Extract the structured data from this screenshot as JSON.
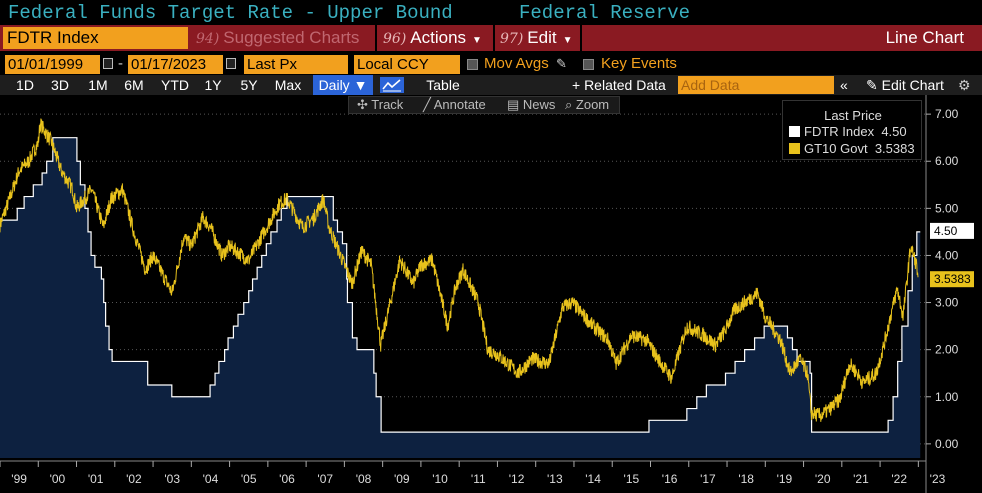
{
  "header": {
    "title": "Federal Funds Target Rate - Upper Bound",
    "source": "Federal Reserve"
  },
  "commandbar": {
    "ticker": "FDTR Index",
    "suggested": {
      "num": "94)",
      "label": "Suggested Charts"
    },
    "actions": {
      "num": "96)",
      "label": "Actions"
    },
    "edit": {
      "num": "97)",
      "label": "Edit"
    },
    "view_label": "Line Chart"
  },
  "daterow": {
    "start_date": "01/01/1999",
    "end_date": "01/17/2023",
    "price_field": "Last Px",
    "currency": "Local CCY",
    "mov_avgs": "Mov Avgs",
    "key_events": "Key Events"
  },
  "toolbar": {
    "periods": [
      "1D",
      "3D",
      "1M",
      "6M",
      "YTD",
      "1Y",
      "5Y",
      "Max"
    ],
    "frequency": "Daily",
    "table_label": "Table",
    "related_label": "+ Related Data",
    "add_data_placeholder": "Add Data",
    "collapse": "«",
    "edit_chart": "Edit Chart"
  },
  "annotation_bar": {
    "track": "Track",
    "annotate": "Annotate",
    "news": "News",
    "zoom": "Zoom"
  },
  "legend": {
    "header": "Last Price",
    "items": [
      {
        "name": "FDTR Index",
        "value": "4.50",
        "color": "#ffffff"
      },
      {
        "name": "GT10 Govt",
        "value": "3.5383",
        "color": "#e8c21c"
      }
    ]
  },
  "chart_data": {
    "type": "line",
    "ylim": [
      -0.3,
      7.3
    ],
    "yticks": [
      "0.00",
      "1.00",
      "2.00",
      "3.00",
      "4.00",
      "5.00",
      "6.00",
      "7.00"
    ],
    "xticks": [
      "'99",
      "'00",
      "'01",
      "'02",
      "'03",
      "'04",
      "'05",
      "'06",
      "'07",
      "'08",
      "'09",
      "'10",
      "'11",
      "'12",
      "'13",
      "'14",
      "'15",
      "'16",
      "'17",
      "'18",
      "'19",
      "'20",
      "'21",
      "'22",
      "'23"
    ],
    "last_labels": [
      {
        "series": "FDTR Index",
        "text": "4.50",
        "value": 4.5
      },
      {
        "series": "GT10 Govt",
        "text": "3.5383",
        "value": 3.5383
      }
    ],
    "series": [
      {
        "name": "FDTR Index",
        "style": "step-area",
        "points": [
          [
            1999.0,
            4.75
          ],
          [
            1999.45,
            5.0
          ],
          [
            1999.63,
            5.25
          ],
          [
            1999.87,
            5.5
          ],
          [
            2000.1,
            5.75
          ],
          [
            2000.22,
            6.0
          ],
          [
            2000.38,
            6.5
          ],
          [
            2001.01,
            6.0
          ],
          [
            2001.1,
            5.5
          ],
          [
            2001.22,
            5.0
          ],
          [
            2001.3,
            4.5
          ],
          [
            2001.38,
            4.0
          ],
          [
            2001.48,
            3.75
          ],
          [
            2001.65,
            3.5
          ],
          [
            2001.71,
            3.0
          ],
          [
            2001.76,
            2.5
          ],
          [
            2001.85,
            2.0
          ],
          [
            2001.93,
            1.75
          ],
          [
            2002.86,
            1.25
          ],
          [
            2003.49,
            1.0
          ],
          [
            2004.49,
            1.25
          ],
          [
            2004.62,
            1.5
          ],
          [
            2004.72,
            1.75
          ],
          [
            2004.87,
            2.0
          ],
          [
            2004.96,
            2.25
          ],
          [
            2005.1,
            2.5
          ],
          [
            2005.22,
            2.75
          ],
          [
            2005.37,
            3.0
          ],
          [
            2005.5,
            3.25
          ],
          [
            2005.6,
            3.5
          ],
          [
            2005.72,
            3.75
          ],
          [
            2005.84,
            4.0
          ],
          [
            2005.96,
            4.25
          ],
          [
            2006.08,
            4.5
          ],
          [
            2006.24,
            4.75
          ],
          [
            2006.35,
            5.0
          ],
          [
            2006.5,
            5.25
          ],
          [
            2007.71,
            4.75
          ],
          [
            2007.82,
            4.5
          ],
          [
            2007.95,
            4.25
          ],
          [
            2008.06,
            3.5
          ],
          [
            2008.08,
            3.0
          ],
          [
            2008.21,
            2.25
          ],
          [
            2008.33,
            2.0
          ],
          [
            2008.77,
            1.5
          ],
          [
            2008.83,
            1.0
          ],
          [
            2008.96,
            0.25
          ],
          [
            2015.96,
            0.5
          ],
          [
            2016.95,
            0.75
          ],
          [
            2017.21,
            1.0
          ],
          [
            2017.46,
            1.25
          ],
          [
            2017.96,
            1.5
          ],
          [
            2018.21,
            1.75
          ],
          [
            2018.46,
            2.0
          ],
          [
            2018.72,
            2.25
          ],
          [
            2018.97,
            2.5
          ],
          [
            2019.58,
            2.25
          ],
          [
            2019.71,
            2.0
          ],
          [
            2019.83,
            1.75
          ],
          [
            2020.17,
            1.5
          ],
          [
            2020.21,
            0.25
          ],
          [
            2022.21,
            0.5
          ],
          [
            2022.34,
            1.0
          ],
          [
            2022.46,
            1.75
          ],
          [
            2022.57,
            2.5
          ],
          [
            2022.73,
            3.25
          ],
          [
            2022.84,
            4.0
          ],
          [
            2022.96,
            4.5
          ],
          [
            2023.05,
            4.5
          ]
        ]
      },
      {
        "name": "GT10 Govt",
        "style": "line",
        "points": [
          [
            1999.0,
            4.65
          ],
          [
            1999.25,
            5.2
          ],
          [
            1999.5,
            5.8
          ],
          [
            1999.75,
            6.0
          ],
          [
            2000.0,
            6.4
          ],
          [
            2000.05,
            6.8
          ],
          [
            2000.35,
            6.4
          ],
          [
            2000.6,
            5.8
          ],
          [
            2000.9,
            5.4
          ],
          [
            2001.0,
            5.0
          ],
          [
            2001.4,
            5.4
          ],
          [
            2001.7,
            4.6
          ],
          [
            2001.9,
            5.2
          ],
          [
            2002.2,
            5.4
          ],
          [
            2002.5,
            4.5
          ],
          [
            2002.8,
            3.7
          ],
          [
            2003.0,
            4.0
          ],
          [
            2003.5,
            3.2
          ],
          [
            2003.8,
            4.4
          ],
          [
            2004.0,
            4.2
          ],
          [
            2004.3,
            4.8
          ],
          [
            2004.5,
            4.6
          ],
          [
            2004.8,
            4.0
          ],
          [
            2005.0,
            4.2
          ],
          [
            2005.5,
            3.9
          ],
          [
            2005.9,
            4.5
          ],
          [
            2006.3,
            5.1
          ],
          [
            2006.5,
            5.2
          ],
          [
            2006.9,
            4.6
          ],
          [
            2007.2,
            4.8
          ],
          [
            2007.45,
            5.2
          ],
          [
            2007.6,
            4.6
          ],
          [
            2007.9,
            4.0
          ],
          [
            2008.2,
            3.4
          ],
          [
            2008.45,
            4.1
          ],
          [
            2008.7,
            3.8
          ],
          [
            2008.95,
            2.1
          ],
          [
            2009.2,
            3.0
          ],
          [
            2009.45,
            3.9
          ],
          [
            2009.8,
            3.4
          ],
          [
            2010.0,
            3.8
          ],
          [
            2010.3,
            3.9
          ],
          [
            2010.7,
            2.5
          ],
          [
            2010.9,
            3.3
          ],
          [
            2011.1,
            3.7
          ],
          [
            2011.5,
            3.0
          ],
          [
            2011.75,
            2.0
          ],
          [
            2012.0,
            1.9
          ],
          [
            2012.55,
            1.5
          ],
          [
            2012.9,
            1.8
          ],
          [
            2013.35,
            1.7
          ],
          [
            2013.7,
            2.9
          ],
          [
            2013.95,
            3.0
          ],
          [
            2014.5,
            2.5
          ],
          [
            2014.9,
            2.2
          ],
          [
            2015.1,
            1.7
          ],
          [
            2015.5,
            2.3
          ],
          [
            2015.9,
            2.2
          ],
          [
            2016.2,
            1.8
          ],
          [
            2016.55,
            1.4
          ],
          [
            2016.95,
            2.5
          ],
          [
            2017.4,
            2.3
          ],
          [
            2017.7,
            2.1
          ],
          [
            2017.95,
            2.4
          ],
          [
            2018.2,
            2.85
          ],
          [
            2018.8,
            3.2
          ],
          [
            2019.0,
            2.7
          ],
          [
            2019.4,
            2.2
          ],
          [
            2019.65,
            1.5
          ],
          [
            2019.9,
            1.8
          ],
          [
            2020.1,
            1.5
          ],
          [
            2020.2,
            0.65
          ],
          [
            2020.45,
            0.6
          ],
          [
            2020.7,
            0.75
          ],
          [
            2020.95,
            0.95
          ],
          [
            2021.2,
            1.7
          ],
          [
            2021.4,
            1.5
          ],
          [
            2021.55,
            1.3
          ],
          [
            2021.9,
            1.5
          ],
          [
            2022.1,
            2.1
          ],
          [
            2022.3,
            2.8
          ],
          [
            2022.45,
            3.3
          ],
          [
            2022.6,
            2.7
          ],
          [
            2022.8,
            4.2
          ],
          [
            2022.95,
            3.8
          ],
          [
            2023.0,
            3.5383
          ]
        ]
      }
    ]
  }
}
